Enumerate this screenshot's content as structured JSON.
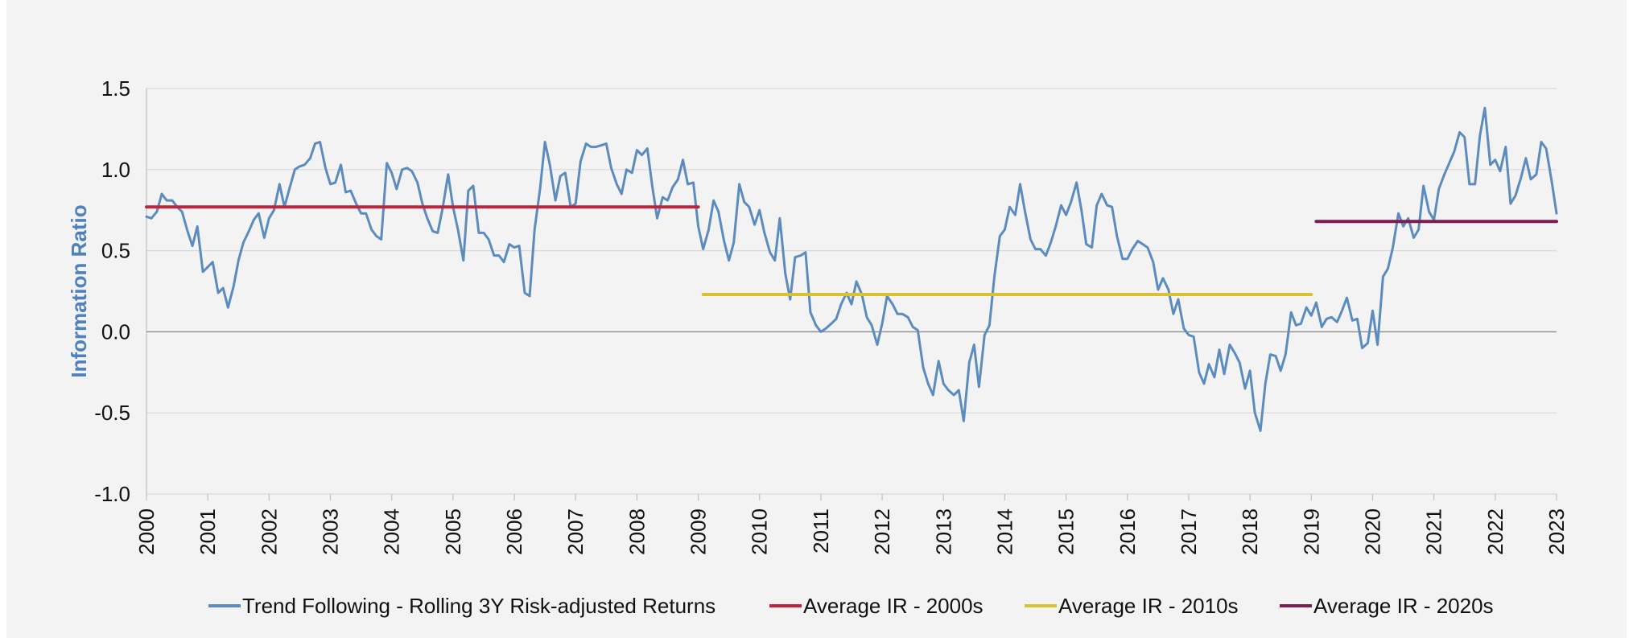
{
  "chart_data": {
    "type": "line",
    "title": "",
    "xlabel": "",
    "ylabel": "Information Ratio",
    "ylim": [
      -1.0,
      1.5
    ],
    "xlim": [
      2000,
      2023
    ],
    "y_ticks": [
      "1.5",
      "1.0",
      "0.5",
      "0.0",
      "-0.5",
      "-1.0"
    ],
    "x_ticks": [
      "2000",
      "2001",
      "2002",
      "2003",
      "2004",
      "2005",
      "2006",
      "2007",
      "2008",
      "2009",
      "2010",
      "2011",
      "2012",
      "2013",
      "2014",
      "2015",
      "2016",
      "2017",
      "2018",
      "2019",
      "2020",
      "2021",
      "2022",
      "2023"
    ],
    "grid": "horizontal",
    "legend_position": "bottom",
    "series": [
      {
        "name": "Trend Following - Rolling 3Y Risk-adjusted Returns",
        "color": "#5b8cbd",
        "x": [
          2000.0,
          2000.08,
          2000.17,
          2000.25,
          2000.33,
          2000.42,
          2000.5,
          2000.58,
          2000.67,
          2000.75,
          2000.83,
          2000.92,
          2001.0,
          2001.08,
          2001.17,
          2001.25,
          2001.33,
          2001.42,
          2001.5,
          2001.58,
          2001.67,
          2001.75,
          2001.83,
          2001.92,
          2002.0,
          2002.08,
          2002.17,
          2002.25,
          2002.33,
          2002.42,
          2002.5,
          2002.58,
          2002.67,
          2002.75,
          2002.83,
          2002.92,
          2003.0,
          2003.08,
          2003.17,
          2003.25,
          2003.33,
          2003.42,
          2003.5,
          2003.58,
          2003.67,
          2003.75,
          2003.83,
          2003.92,
          2004.0,
          2004.08,
          2004.17,
          2004.25,
          2004.33,
          2004.42,
          2004.5,
          2004.58,
          2004.67,
          2004.75,
          2004.83,
          2004.92,
          2005.0,
          2005.08,
          2005.17,
          2005.25,
          2005.33,
          2005.42,
          2005.5,
          2005.58,
          2005.67,
          2005.75,
          2005.83,
          2005.92,
          2006.0,
          2006.08,
          2006.17,
          2006.25,
          2006.33,
          2006.42,
          2006.5,
          2006.58,
          2006.67,
          2006.75,
          2006.83,
          2006.92,
          2007.0,
          2007.08,
          2007.17,
          2007.25,
          2007.33,
          2007.42,
          2007.5,
          2007.58,
          2007.67,
          2007.75,
          2007.83,
          2007.92,
          2008.0,
          2008.08,
          2008.17,
          2008.25,
          2008.33,
          2008.42,
          2008.5,
          2008.58,
          2008.67,
          2008.75,
          2008.83,
          2008.92,
          2009.0,
          2009.08,
          2009.17,
          2009.25,
          2009.33,
          2009.42,
          2009.5,
          2009.58,
          2009.67,
          2009.75,
          2009.83,
          2009.92,
          2010.0,
          2010.08,
          2010.17,
          2010.25,
          2010.33,
          2010.42,
          2010.5,
          2010.58,
          2010.67,
          2010.75,
          2010.83,
          2010.92,
          2011.0,
          2011.08,
          2011.17,
          2011.25,
          2011.33,
          2011.42,
          2011.5,
          2011.58,
          2011.67,
          2011.75,
          2011.83,
          2011.92,
          2012.0,
          2012.08,
          2012.17,
          2012.25,
          2012.33,
          2012.42,
          2012.5,
          2012.58,
          2012.67,
          2012.75,
          2012.83,
          2012.92,
          2013.0,
          2013.08,
          2013.17,
          2013.25,
          2013.33,
          2013.42,
          2013.5,
          2013.58,
          2013.67,
          2013.75,
          2013.83,
          2013.92,
          2014.0,
          2014.08,
          2014.17,
          2014.25,
          2014.33,
          2014.42,
          2014.5,
          2014.58,
          2014.67,
          2014.75,
          2014.83,
          2014.92,
          2015.0,
          2015.08,
          2015.17,
          2015.25,
          2015.33,
          2015.42,
          2015.5,
          2015.58,
          2015.67,
          2015.75,
          2015.83,
          2015.92,
          2016.0,
          2016.08,
          2016.17,
          2016.25,
          2016.33,
          2016.42,
          2016.5,
          2016.58,
          2016.67,
          2016.75,
          2016.83,
          2016.92,
          2017.0,
          2017.08,
          2017.17,
          2017.25,
          2017.33,
          2017.42,
          2017.5,
          2017.58,
          2017.67,
          2017.75,
          2017.83,
          2017.92,
          2018.0,
          2018.08,
          2018.17,
          2018.25,
          2018.33,
          2018.42,
          2018.5,
          2018.58,
          2018.67,
          2018.75,
          2018.83,
          2018.92,
          2019.0,
          2019.08,
          2019.17,
          2019.25,
          2019.33,
          2019.42,
          2019.5,
          2019.58,
          2019.67,
          2019.75,
          2019.83,
          2019.92,
          2020.0,
          2020.08,
          2020.17,
          2020.25,
          2020.33,
          2020.42,
          2020.5,
          2020.58,
          2020.67,
          2020.75,
          2020.83,
          2020.92,
          2021.0,
          2021.08,
          2021.17,
          2021.25,
          2021.33,
          2021.42,
          2021.5,
          2021.58,
          2021.67,
          2021.75,
          2021.83,
          2021.92,
          2022.0,
          2022.08,
          2022.17,
          2022.25,
          2022.33,
          2022.42,
          2022.5,
          2022.58,
          2022.67,
          2022.75,
          2022.83,
          2022.92,
          2023.0
        ],
        "y": [
          0.71,
          0.7,
          0.74,
          0.85,
          0.81,
          0.81,
          0.77,
          0.74,
          0.62,
          0.53,
          0.65,
          0.37,
          0.4,
          0.43,
          0.24,
          0.27,
          0.15,
          0.28,
          0.44,
          0.55,
          0.62,
          0.69,
          0.73,
          0.58,
          0.7,
          0.75,
          0.91,
          0.77,
          0.88,
          1.0,
          1.02,
          1.03,
          1.07,
          1.16,
          1.17,
          1.01,
          0.91,
          0.92,
          1.03,
          0.86,
          0.87,
          0.79,
          0.73,
          0.73,
          0.63,
          0.59,
          0.57,
          1.04,
          0.98,
          0.88,
          1.0,
          1.01,
          0.99,
          0.92,
          0.79,
          0.7,
          0.62,
          0.61,
          0.76,
          0.97,
          0.77,
          0.63,
          0.44,
          0.87,
          0.9,
          0.61,
          0.61,
          0.57,
          0.47,
          0.47,
          0.43,
          0.54,
          0.52,
          0.53,
          0.24,
          0.22,
          0.63,
          0.88,
          1.17,
          1.03,
          0.81,
          0.96,
          0.98,
          0.77,
          0.79,
          1.05,
          1.16,
          1.14,
          1.14,
          1.15,
          1.16,
          1.01,
          0.91,
          0.85,
          1.0,
          0.98,
          1.12,
          1.09,
          1.13,
          0.9,
          0.7,
          0.83,
          0.81,
          0.89,
          0.94,
          1.06,
          0.91,
          0.92,
          0.65,
          0.51,
          0.63,
          0.81,
          0.74,
          0.56,
          0.44,
          0.55,
          0.91,
          0.8,
          0.77,
          0.66,
          0.75,
          0.61,
          0.49,
          0.44,
          0.7,
          0.36,
          0.2,
          0.46,
          0.47,
          0.49,
          0.12,
          0.04,
          0.0,
          0.02,
          0.05,
          0.08,
          0.17,
          0.24,
          0.17,
          0.31,
          0.23,
          0.09,
          0.04,
          -0.08,
          0.05,
          0.22,
          0.17,
          0.11,
          0.11,
          0.09,
          0.03,
          0.01,
          -0.22,
          -0.32,
          -0.39,
          -0.18,
          -0.32,
          -0.36,
          -0.39,
          -0.36,
          -0.55,
          -0.19,
          -0.08,
          -0.34,
          -0.02,
          0.04,
          0.34,
          0.59,
          0.63,
          0.77,
          0.72,
          0.91,
          0.74,
          0.57,
          0.51,
          0.51,
          0.47,
          0.55,
          0.65,
          0.78,
          0.72,
          0.8,
          0.92,
          0.75,
          0.54,
          0.52,
          0.78,
          0.85,
          0.78,
          0.77,
          0.59,
          0.45,
          0.45,
          0.51,
          0.56,
          0.54,
          0.52,
          0.43,
          0.26,
          0.33,
          0.26,
          0.11,
          0.2,
          0.02,
          -0.02,
          -0.03,
          -0.25,
          -0.32,
          -0.2,
          -0.28,
          -0.11,
          -0.26,
          -0.08,
          -0.13,
          -0.19,
          -0.35,
          -0.24,
          -0.5,
          -0.61,
          -0.32,
          -0.14,
          -0.15,
          -0.24,
          -0.14,
          0.12,
          0.04,
          0.05,
          0.15,
          0.1,
          0.18,
          0.03,
          0.08,
          0.09,
          0.06,
          0.13,
          0.21,
          0.07,
          0.08,
          -0.1,
          -0.07,
          0.13,
          -0.08,
          0.34,
          0.39,
          0.52,
          0.73,
          0.65,
          0.7,
          0.58,
          0.63,
          0.9,
          0.74,
          0.69,
          0.88,
          0.97,
          1.04,
          1.11,
          1.23,
          1.2,
          0.91,
          0.91,
          1.21,
          1.38,
          1.03,
          1.06,
          0.99,
          1.14,
          0.79,
          0.84,
          0.95,
          1.07,
          0.94,
          0.97,
          1.17,
          1.13,
          0.93,
          0.73
        ]
      },
      {
        "name": "Average IR - 2000s",
        "color": "#c0243c",
        "x": [
          2000,
          2009
        ],
        "y": [
          0.77,
          0.77
        ]
      },
      {
        "name": "Average IR - 2010s",
        "color": "#d8c234",
        "x": [
          2009.08,
          2019
        ],
        "y": [
          0.23,
          0.23
        ]
      },
      {
        "name": "Average IR - 2020s",
        "color": "#7b1d52",
        "x": [
          2019.08,
          2023
        ],
        "y": [
          0.68,
          0.68
        ]
      }
    ]
  },
  "colors": {
    "panel_background": "#f3f3f3",
    "gridline": "#d9d9d9",
    "axis": "#bfbfbf",
    "ylabel": "#4f81bd",
    "text": "#111111"
  }
}
